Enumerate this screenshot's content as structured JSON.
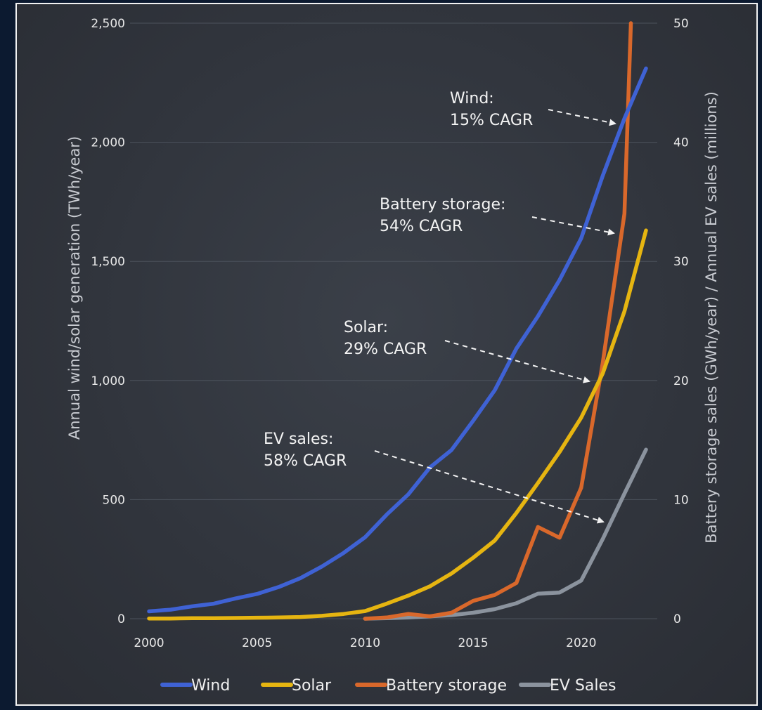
{
  "chart_data": {
    "type": "line",
    "left_axis": {
      "label": "Annual wind/solar generation (TWh/year)",
      "range": [
        0,
        2500
      ],
      "ticks": [
        "0",
        "500",
        "1,000",
        "1,500",
        "2,000",
        "2,500"
      ]
    },
    "right_axis": {
      "label": "Battery storage sales (GWh/year) / Annual EV sales (millions)",
      "range": [
        0,
        50
      ],
      "ticks": [
        "0",
        "10",
        "20",
        "30",
        "40",
        "50"
      ]
    },
    "x_axis": {
      "range": [
        2000,
        2023
      ],
      "ticks": [
        "2000",
        "2005",
        "2010",
        "2015",
        "2020"
      ]
    },
    "series": [
      {
        "name": "Wind",
        "axis": "left",
        "color": "#3f62d4",
        "points": [
          [
            2000,
            31
          ],
          [
            2001,
            38
          ],
          [
            2002,
            52
          ],
          [
            2003,
            63
          ],
          [
            2004,
            85
          ],
          [
            2005,
            104
          ],
          [
            2006,
            133
          ],
          [
            2007,
            170
          ],
          [
            2008,
            219
          ],
          [
            2009,
            276
          ],
          [
            2010,
            342
          ],
          [
            2011,
            437
          ],
          [
            2012,
            522
          ],
          [
            2013,
            635
          ],
          [
            2014,
            708
          ],
          [
            2015,
            831
          ],
          [
            2016,
            959
          ],
          [
            2017,
            1134
          ],
          [
            2018,
            1270
          ],
          [
            2019,
            1422
          ],
          [
            2020,
            1597
          ],
          [
            2021,
            1860
          ],
          [
            2022,
            2100
          ],
          [
            2023,
            2310
          ]
        ]
      },
      {
        "name": "Solar",
        "axis": "left",
        "color": "#e6b511",
        "points": [
          [
            2000,
            1
          ],
          [
            2001,
            1
          ],
          [
            2002,
            2
          ],
          [
            2003,
            2
          ],
          [
            2004,
            3
          ],
          [
            2005,
            4
          ],
          [
            2006,
            5
          ],
          [
            2007,
            7
          ],
          [
            2008,
            12
          ],
          [
            2009,
            20
          ],
          [
            2010,
            32
          ],
          [
            2011,
            63
          ],
          [
            2012,
            97
          ],
          [
            2013,
            136
          ],
          [
            2014,
            190
          ],
          [
            2015,
            256
          ],
          [
            2016,
            328
          ],
          [
            2017,
            444
          ],
          [
            2018,
            570
          ],
          [
            2019,
            700
          ],
          [
            2020,
            844
          ],
          [
            2021,
            1030
          ],
          [
            2022,
            1290
          ],
          [
            2023,
            1630
          ]
        ]
      },
      {
        "name": "Battery storage",
        "axis": "right",
        "color": "#d9682b",
        "points": [
          [
            2010,
            0.0
          ],
          [
            2011,
            0.1
          ],
          [
            2012,
            0.4
          ],
          [
            2013,
            0.2
          ],
          [
            2014,
            0.5
          ],
          [
            2015,
            1.5
          ],
          [
            2016,
            2.0
          ],
          [
            2017,
            3.0
          ],
          [
            2018,
            7.7
          ],
          [
            2019,
            6.8
          ],
          [
            2020,
            11.0
          ],
          [
            2021,
            21.5
          ],
          [
            2022,
            34.0
          ],
          [
            2022.3,
            50.0
          ]
        ]
      },
      {
        "name": "EV Sales",
        "axis": "right",
        "color": "#8b939e",
        "points": [
          [
            2010,
            0.0
          ],
          [
            2011,
            0.05
          ],
          [
            2012,
            0.1
          ],
          [
            2013,
            0.2
          ],
          [
            2014,
            0.3
          ],
          [
            2015,
            0.5
          ],
          [
            2016,
            0.8
          ],
          [
            2017,
            1.3
          ],
          [
            2018,
            2.1
          ],
          [
            2019,
            2.2
          ],
          [
            2020,
            3.2
          ],
          [
            2021,
            6.7
          ],
          [
            2022,
            10.5
          ],
          [
            2023,
            14.2
          ]
        ]
      }
    ],
    "annotations": [
      {
        "lines": [
          "Wind:",
          "15% CAGR"
        ],
        "target_series": "Wind",
        "target_x": 2021.9
      },
      {
        "lines": [
          "Battery storage:",
          "54% CAGR"
        ],
        "target_series": "Battery storage",
        "target_x": 2021.8
      },
      {
        "lines": [
          "Solar:",
          "29% CAGR"
        ],
        "target_series": "Solar",
        "target_x": 2020.7
      },
      {
        "lines": [
          "EV sales:",
          "58% CAGR"
        ],
        "target_series": "EV Sales",
        "target_x": 2021.3
      }
    ],
    "legend": {
      "position": "bottom",
      "entries": [
        "Wind",
        "Solar",
        "Battery storage",
        "EV Sales"
      ]
    },
    "grid": "horizontal"
  }
}
